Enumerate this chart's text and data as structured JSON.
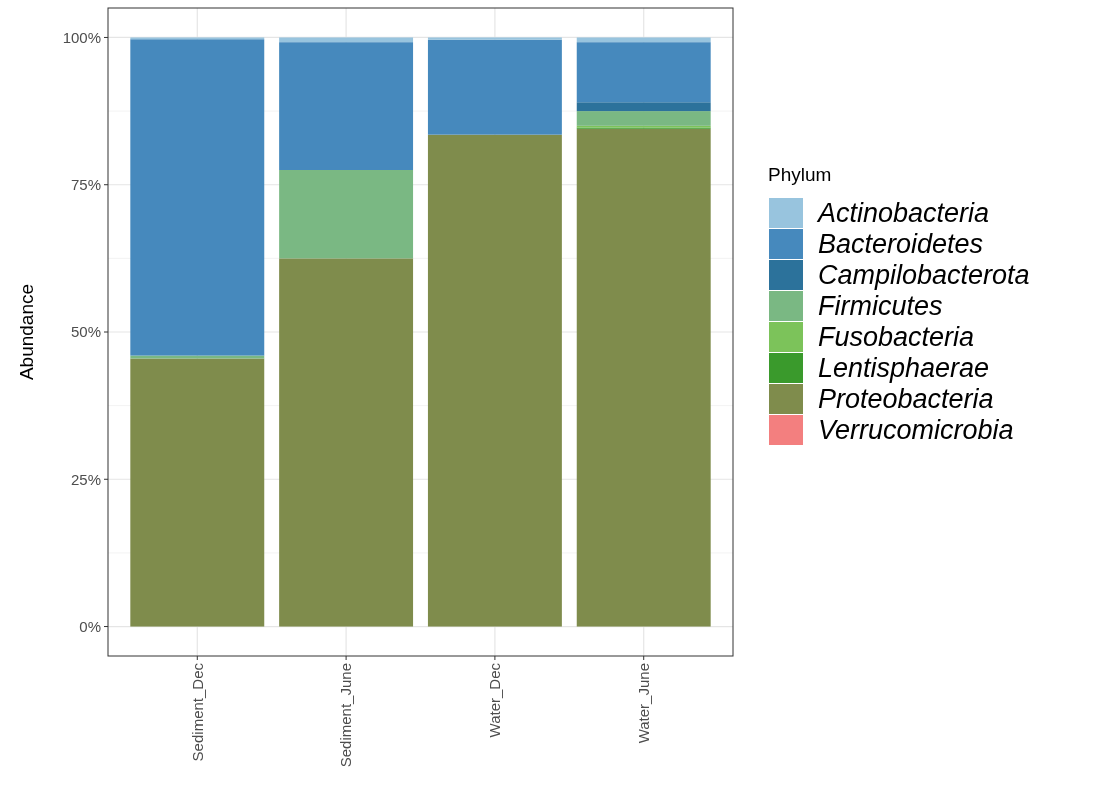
{
  "chart_data": {
    "type": "bar",
    "stacked": true,
    "ylabel": "Abundance",
    "legend_title": "Phylum",
    "legend": "right",
    "grid": true,
    "categories": [
      "Sediment_Dec",
      "Sediment_June",
      "Water_Dec",
      "Water_June"
    ],
    "ylim": [
      -5,
      105
    ],
    "yticks": [
      {
        "value": 0,
        "label": "0%"
      },
      {
        "value": 25,
        "label": "25%"
      },
      {
        "value": 50,
        "label": "50%"
      },
      {
        "value": 75,
        "label": "75%"
      },
      {
        "value": 100,
        "label": "100%"
      }
    ],
    "series": [
      {
        "name": "Verrucomicrobia",
        "color": "#f37f7f",
        "values": [
          0,
          0,
          0,
          0
        ]
      },
      {
        "name": "Proteobacteria",
        "color": "#7f8c4c",
        "values": [
          45.5,
          62.5,
          83.5,
          84.5
        ]
      },
      {
        "name": "Lentisphaerae",
        "color": "#3a9a2c",
        "values": [
          0,
          0,
          0,
          0.2
        ]
      },
      {
        "name": "Fusobacteria",
        "color": "#7cc35a",
        "values": [
          0,
          0,
          0,
          0.3
        ]
      },
      {
        "name": "Firmicutes",
        "color": "#7ab883",
        "values": [
          0.5,
          15,
          0,
          2.5
        ]
      },
      {
        "name": "Campilobacterota",
        "color": "#2c729b",
        "values": [
          0,
          0,
          0,
          1.5
        ]
      },
      {
        "name": "Bacteroidetes",
        "color": "#4689bd",
        "values": [
          53.7,
          21.7,
          16.1,
          10.2
        ]
      },
      {
        "name": "Actinobacteria",
        "color": "#98c4de",
        "values": [
          0.3,
          0.8,
          0.4,
          0.8
        ]
      }
    ]
  }
}
